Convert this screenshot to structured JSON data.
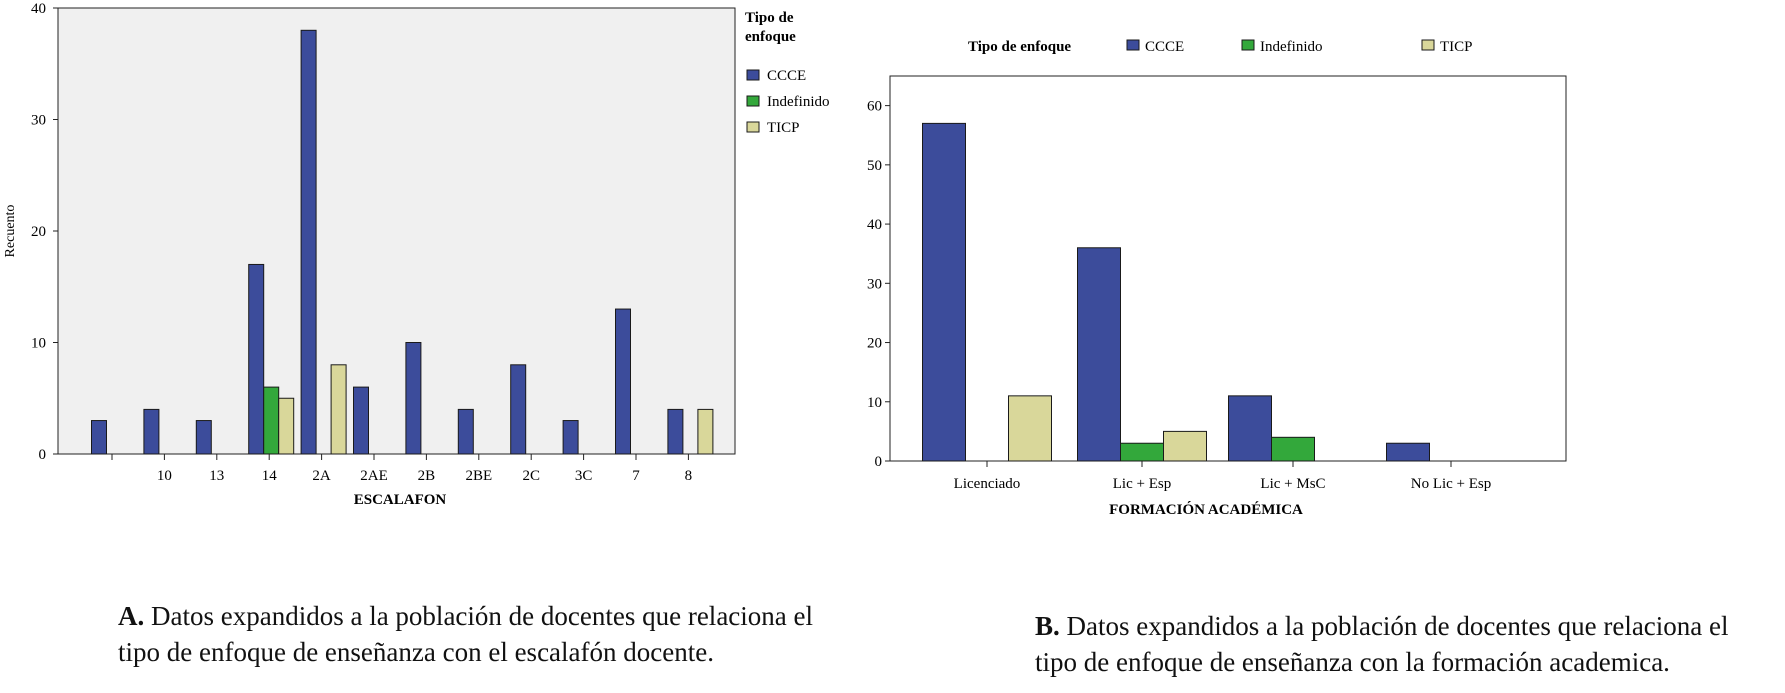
{
  "chart_data": [
    {
      "type": "bar",
      "panel": "A",
      "title": "",
      "xlabel": "ESCALAFON",
      "ylabel": "Recuento",
      "ylim": [
        0,
        40
      ],
      "yticks": [
        0,
        10,
        20,
        30,
        40
      ],
      "legend_title": "Tipo de enfoque",
      "legend_placement": "right",
      "categories": [
        "",
        "10",
        "13",
        "14",
        "2A",
        "2AE",
        "2B",
        "2BE",
        "2C",
        "3C",
        "7",
        "8"
      ],
      "series": [
        {
          "name": "CCCE",
          "color": "#3c4c9b",
          "values": [
            3,
            4,
            3,
            17,
            38,
            6,
            10,
            4,
            8,
            3,
            13,
            4
          ]
        },
        {
          "name": "Indefinido",
          "color": "#33a83b",
          "values": [
            0,
            0,
            0,
            6,
            0,
            0,
            0,
            0,
            0,
            0,
            0,
            0
          ]
        },
        {
          "name": "TICP",
          "color": "#d9d79a",
          "values": [
            0,
            0,
            0,
            5,
            8,
            0,
            0,
            0,
            0,
            0,
            0,
            4
          ]
        }
      ]
    },
    {
      "type": "bar",
      "panel": "B",
      "title": "",
      "xlabel": "FORMACIÓN ACADÉMICA",
      "ylabel": "",
      "ylim": [
        0,
        65
      ],
      "yticks": [
        0,
        10,
        20,
        30,
        40,
        50,
        60
      ],
      "legend_title": "Tipo de enfoque",
      "legend_placement": "top",
      "categories": [
        "Licenciado",
        "Lic + Esp",
        "Lic + MsC",
        "No Lic + Esp"
      ],
      "series": [
        {
          "name": "CCCE",
          "color": "#3c4c9b",
          "values": [
            57,
            36,
            11,
            3
          ]
        },
        {
          "name": "Indefinido",
          "color": "#33a83b",
          "values": [
            0,
            3,
            4,
            0
          ]
        },
        {
          "name": "TICP",
          "color": "#d9d79a",
          "values": [
            11,
            5,
            0,
            0
          ]
        }
      ]
    }
  ],
  "captions": {
    "a_label": "A.",
    "a_text": "Datos expandidos a la población de docentes que relaciona el tipo de enfoque de enseñanza con el escalafón docente.",
    "b_label": "B.",
    "b_text": "Datos expandidos a la población de docentes que relaciona el tipo de enfoque de enseñanza con la formación academica."
  }
}
